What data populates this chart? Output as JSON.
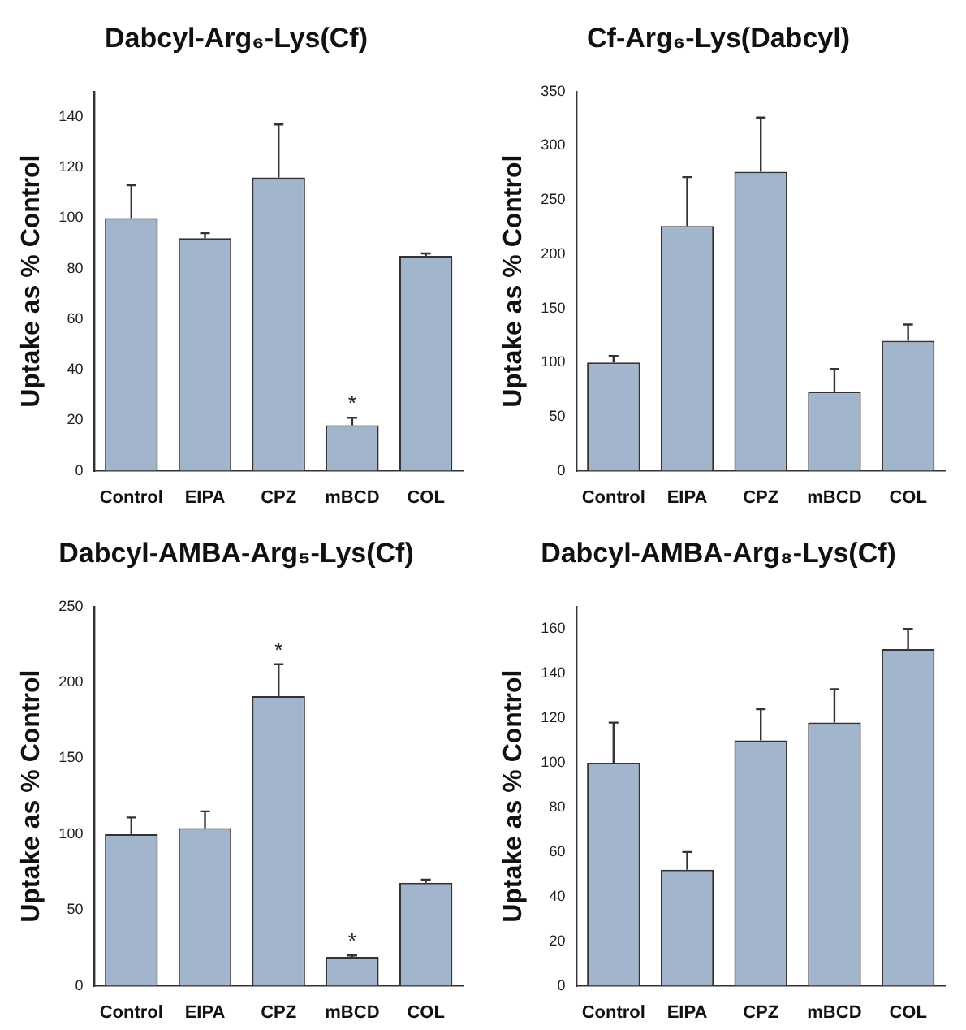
{
  "chart_data": [
    {
      "type": "bar",
      "title": "Dabcyl-Arg₆-Lys(Cf)",
      "ylabel": "Uptake as % Control",
      "categories": [
        "Control",
        "EIPA",
        "CPZ",
        "mBCD",
        "COL"
      ],
      "color": "#a3b5cc",
      "values": [
        100,
        92,
        116,
        18,
        85
      ],
      "errors": [
        [
          100,
          113
        ],
        [
          92,
          94
        ],
        [
          116,
          137
        ],
        [
          18,
          21
        ],
        [
          85,
          86
        ]
      ],
      "ylim": [
        0,
        150
      ],
      "yticks": [
        0,
        20,
        40,
        60,
        80,
        100,
        120,
        140
      ],
      "grid": false,
      "legend": false,
      "annotations": [
        {
          "text": "*",
          "x": "mBCD",
          "y": 21
        }
      ]
    },
    {
      "type": "bar",
      "title": "Cf-Arg₆-Lys(Dabcyl)",
      "ylabel": "Uptake as % Control",
      "categories": [
        "Control",
        "EIPA",
        "CPZ",
        "mBCD",
        "COL"
      ],
      "color": "#a3b5cc",
      "values": [
        100,
        226,
        276,
        73,
        120
      ],
      "errors": [
        [
          100,
          106
        ],
        [
          226,
          271
        ],
        [
          276,
          326
        ],
        [
          73,
          94
        ],
        [
          120,
          135
        ]
      ],
      "ylim": [
        0,
        350
      ],
      "yticks": [
        0,
        50,
        100,
        150,
        200,
        250,
        300,
        350
      ],
      "grid": false,
      "legend": false
    },
    {
      "type": "bar",
      "title": "Dabcyl-AMBA-Arg₅-Lys(Cf)",
      "ylabel": "Uptake as % Control",
      "categories": [
        "Control",
        "EIPA",
        "CPZ",
        "mBCD",
        "COL"
      ],
      "color": "#a3b5cc",
      "values": [
        100,
        104,
        191,
        19,
        68
      ],
      "errors": [
        [
          100,
          111
        ],
        [
          104,
          115
        ],
        [
          191,
          212
        ],
        [
          19,
          20
        ],
        [
          68,
          70
        ]
      ],
      "ylim": [
        0,
        250
      ],
      "yticks": [
        0,
        50,
        100,
        150,
        200,
        250
      ],
      "grid": false,
      "legend": false,
      "annotations": [
        {
          "text": "*",
          "x": "CPZ",
          "y": 212
        },
        {
          "text": "*",
          "x": "mBCD",
          "y": 20
        }
      ]
    },
    {
      "type": "bar",
      "title": "Dabcyl-AMBA-Arg₈-Lys(Cf)",
      "ylabel": "Uptake as % Control",
      "categories": [
        "Control",
        "EIPA",
        "CPZ",
        "mBCD",
        "COL"
      ],
      "color": "#a3b5cc",
      "values": [
        100,
        52,
        110,
        118,
        151
      ],
      "errors": [
        [
          100,
          118
        ],
        [
          52,
          60
        ],
        [
          110,
          124
        ],
        [
          118,
          133
        ],
        [
          151,
          160
        ]
      ],
      "ylim": [
        0,
        170
      ],
      "yticks": [
        0,
        20,
        40,
        60,
        80,
        100,
        120,
        140,
        160
      ],
      "grid": false,
      "legend": false
    }
  ]
}
